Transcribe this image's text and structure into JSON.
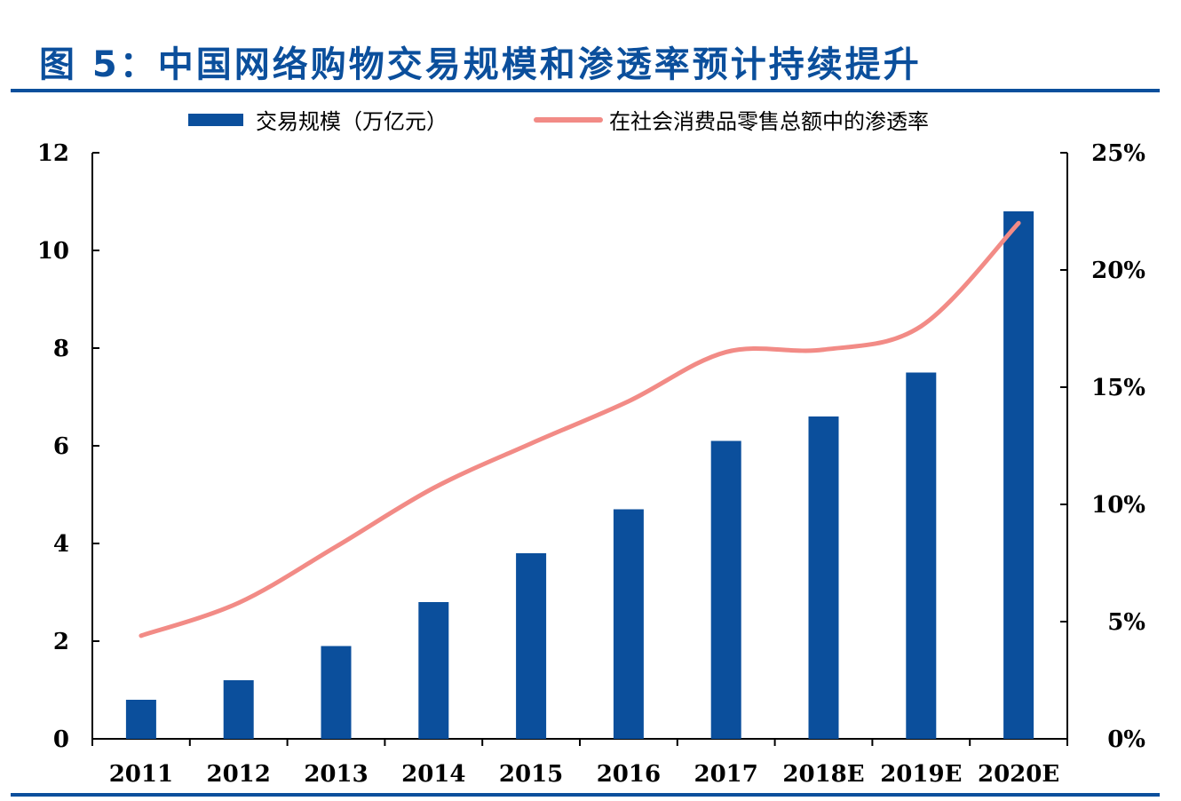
{
  "title": "图 5：中国网络购物交易规模和渗透率预计持续提升",
  "colors": {
    "bar": "#0b4f9c",
    "line": "#f28b86",
    "title": "#0b4f9c",
    "axis": "#000000"
  },
  "chart_data": {
    "type": "bar",
    "categories": [
      "2011",
      "2012",
      "2013",
      "2014",
      "2015",
      "2016",
      "2017",
      "2018E",
      "2019E",
      "2020E"
    ],
    "series": [
      {
        "name": "交易规模（万亿元）",
        "type": "bar",
        "axis": "left",
        "values": [
          0.8,
          1.2,
          1.9,
          2.8,
          3.8,
          4.7,
          6.1,
          6.6,
          7.5,
          10.8
        ]
      },
      {
        "name": "在社会消费品零售总额中的渗透率",
        "type": "line",
        "axis": "right",
        "values": [
          4.4,
          5.8,
          8.2,
          10.7,
          12.6,
          14.4,
          16.5,
          16.6,
          17.6,
          22.0
        ]
      }
    ],
    "y_left": {
      "min": 0,
      "max": 12,
      "ticks": [
        "0",
        "2",
        "4",
        "6",
        "8",
        "10",
        "12"
      ]
    },
    "y_right": {
      "min": 0,
      "max": 25,
      "ticks": [
        "0%",
        "5%",
        "10%",
        "15%",
        "20%",
        "25%"
      ]
    },
    "legend_position": "top",
    "grid": false
  }
}
